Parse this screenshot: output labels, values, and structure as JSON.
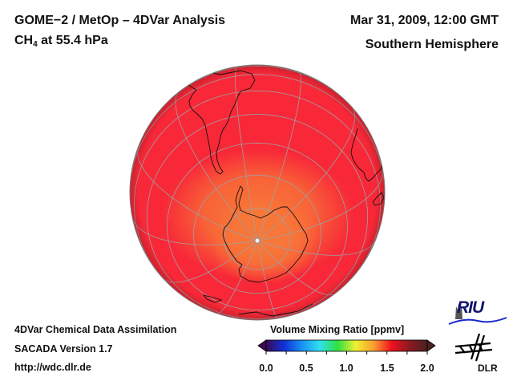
{
  "header": {
    "title_line1": "GOME−2 / MetOp – 4DVar Analysis",
    "species_main": "CH",
    "species_sub": "4",
    "species_rest": " at 55.4 hPa",
    "date": "Mar 31, 2009, 12:00 GMT",
    "region": "Southern Hemisphere"
  },
  "footer": {
    "line1": "4DVar Chemical Data Assimilation",
    "line2": "SACADA Version 1.7",
    "line3": "http://wdc.dlr.de"
  },
  "colorbar": {
    "title": "Volume Mixing Ratio [ppmv]",
    "min": 0.0,
    "max": 2.0,
    "ticks": [
      "0.0",
      "0.5",
      "1.0",
      "1.5",
      "2.0"
    ],
    "colors": [
      "#3a0a55",
      "#1030d8",
      "#1890f0",
      "#30e0f0",
      "#30e040",
      "#f0f030",
      "#f8a030",
      "#f01020",
      "#8a1a20",
      "#4a2020"
    ]
  },
  "map": {
    "projection": "orthographic",
    "view": "south-pole-centered",
    "field_range_ppmv": [
      1.55,
      1.75
    ],
    "background_color": "#f82838",
    "core_color": "#f87838",
    "grid_color": "#a0a0a0",
    "coast_color": "#111111"
  },
  "logos": {
    "riu": "RIU",
    "dlr": "DLR"
  }
}
